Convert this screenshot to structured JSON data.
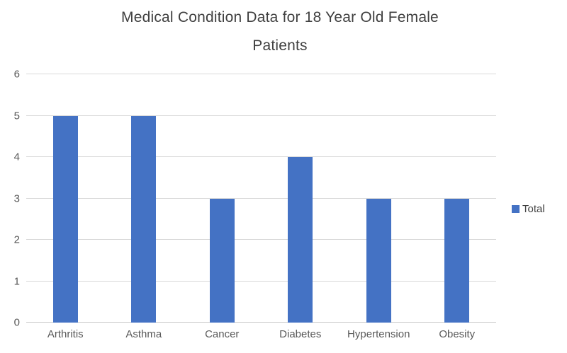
{
  "chart_data": {
    "type": "bar",
    "title": "Medical Condition Data for 18 Year Old Female Patients",
    "title_lines": [
      "Medical Condition Data for 18 Year Old Female",
      "Patients"
    ],
    "categories": [
      "Arthritis",
      "Asthma",
      "Cancer",
      "Diabetes",
      "Hypertension",
      "Obesity"
    ],
    "series": [
      {
        "name": "Total",
        "values": [
          5,
          5,
          3,
          4,
          3,
          3
        ]
      }
    ],
    "xlabel": "",
    "ylabel": "",
    "ylim": [
      0,
      6
    ],
    "yticks": [
      0,
      1,
      2,
      3,
      4,
      5,
      6
    ],
    "grid": true,
    "legend_position": "right",
    "colors": {
      "bar": "#4472C4",
      "gridline": "#D9D9D9",
      "title_text": "#404040",
      "axis_text": "#595959",
      "legend_text": "#404040"
    }
  },
  "legend": {
    "label": "Total"
  }
}
